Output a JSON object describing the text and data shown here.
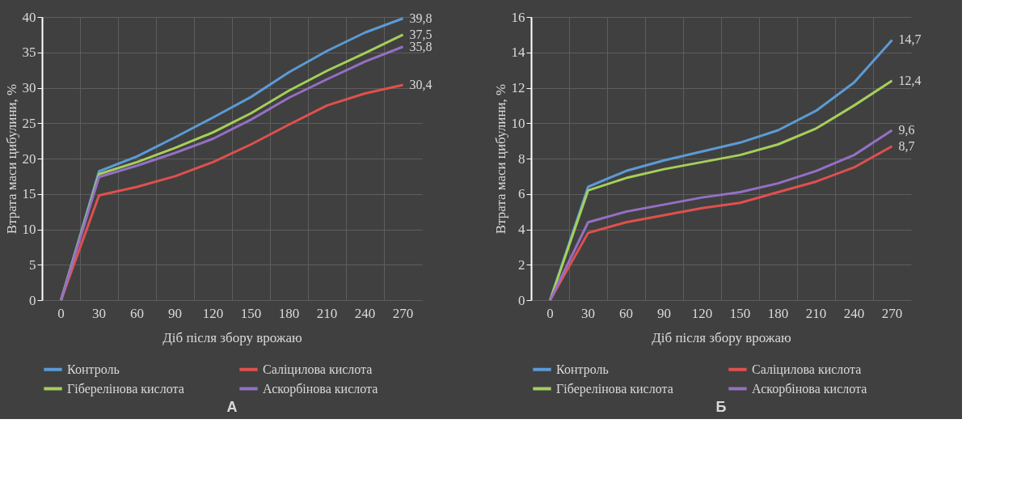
{
  "chart_data": [
    {
      "type": "line",
      "categories": [
        "0",
        "30",
        "60",
        "90",
        "120",
        "150",
        "180",
        "210",
        "240",
        "270"
      ],
      "xlabel": "Діб після збору врожаю",
      "ylabel": "Втрата маси цибулини, %",
      "ylim": [
        0,
        40
      ],
      "yticks": [
        0,
        5,
        10,
        15,
        20,
        25,
        30,
        35,
        40
      ],
      "grid": true,
      "legend": "bottom",
      "line_style": "solid",
      "annotations": [
        "А"
      ],
      "series": [
        {
          "name": "Контроль",
          "color": "#5b9bd5",
          "values": [
            0,
            18.2,
            20.3,
            23,
            25.8,
            28.7,
            32.2,
            35.2,
            37.8,
            39.8
          ],
          "value_labels": [
            null,
            null,
            null,
            null,
            null,
            null,
            null,
            null,
            null,
            "39,8"
          ]
        },
        {
          "name": "Саліцилова кислота",
          "color": "#e0504d",
          "values": [
            0,
            14.8,
            16.0,
            17.5,
            19.5,
            22,
            24.8,
            27.5,
            29.2,
            30.4
          ],
          "value_labels": [
            null,
            null,
            null,
            null,
            null,
            null,
            null,
            null,
            null,
            "30,4"
          ]
        },
        {
          "name": "Гіберелінова кислота",
          "color": "#a5cf5a",
          "values": [
            0,
            17.8,
            19.5,
            21.5,
            23.7,
            26.4,
            29.6,
            32.4,
            34.9,
            37.5
          ],
          "value_labels": [
            null,
            null,
            null,
            null,
            null,
            null,
            null,
            null,
            null,
            "37,5"
          ]
        },
        {
          "name": "Аскорбінова кислота",
          "color": "#9470c4",
          "values": [
            0,
            17.4,
            19,
            20.8,
            22.8,
            25.5,
            28.6,
            31.2,
            33.7,
            35.8
          ],
          "value_labels": [
            null,
            null,
            null,
            null,
            null,
            null,
            null,
            null,
            null,
            "35,8"
          ]
        }
      ]
    },
    {
      "type": "line",
      "categories": [
        "0",
        "30",
        "60",
        "90",
        "120",
        "150",
        "180",
        "210",
        "240",
        "270"
      ],
      "xlabel": "Діб після збору врожаю",
      "ylabel": "Втрата маси цибулини, %",
      "ylim": [
        0,
        16
      ],
      "yticks": [
        0,
        2,
        4,
        6,
        8,
        10,
        12,
        14,
        16
      ],
      "grid": true,
      "legend": "bottom",
      "line_style": "solid",
      "annotations": [
        "Б"
      ],
      "series": [
        {
          "name": "Контроль",
          "color": "#5b9bd5",
          "values": [
            0,
            6.4,
            7.3,
            7.9,
            8.4,
            8.9,
            9.6,
            10.7,
            12.3,
            14.7
          ],
          "value_labels": [
            null,
            null,
            null,
            null,
            null,
            null,
            null,
            null,
            null,
            "14,7"
          ]
        },
        {
          "name": "Саліцилова кислота",
          "color": "#e0504d",
          "values": [
            0,
            3.8,
            4.4,
            4.8,
            5.2,
            5.5,
            6.1,
            6.7,
            7.5,
            8.7
          ],
          "value_labels": [
            null,
            null,
            null,
            null,
            null,
            null,
            null,
            null,
            null,
            "8,7"
          ]
        },
        {
          "name": "Гіберелінова кислота",
          "color": "#a5cf5a",
          "values": [
            0,
            6.2,
            6.9,
            7.4,
            7.8,
            8.2,
            8.8,
            9.7,
            11.0,
            12.4
          ],
          "value_labels": [
            null,
            null,
            null,
            null,
            null,
            null,
            null,
            null,
            null,
            "12,4"
          ]
        },
        {
          "name": "Аскорбінова кислота",
          "color": "#9470c4",
          "values": [
            0,
            4.4,
            5.0,
            5.4,
            5.8,
            6.1,
            6.6,
            7.3,
            8.2,
            9.6
          ],
          "value_labels": [
            null,
            null,
            null,
            null,
            null,
            null,
            null,
            null,
            null,
            "9,6"
          ]
        }
      ]
    }
  ]
}
